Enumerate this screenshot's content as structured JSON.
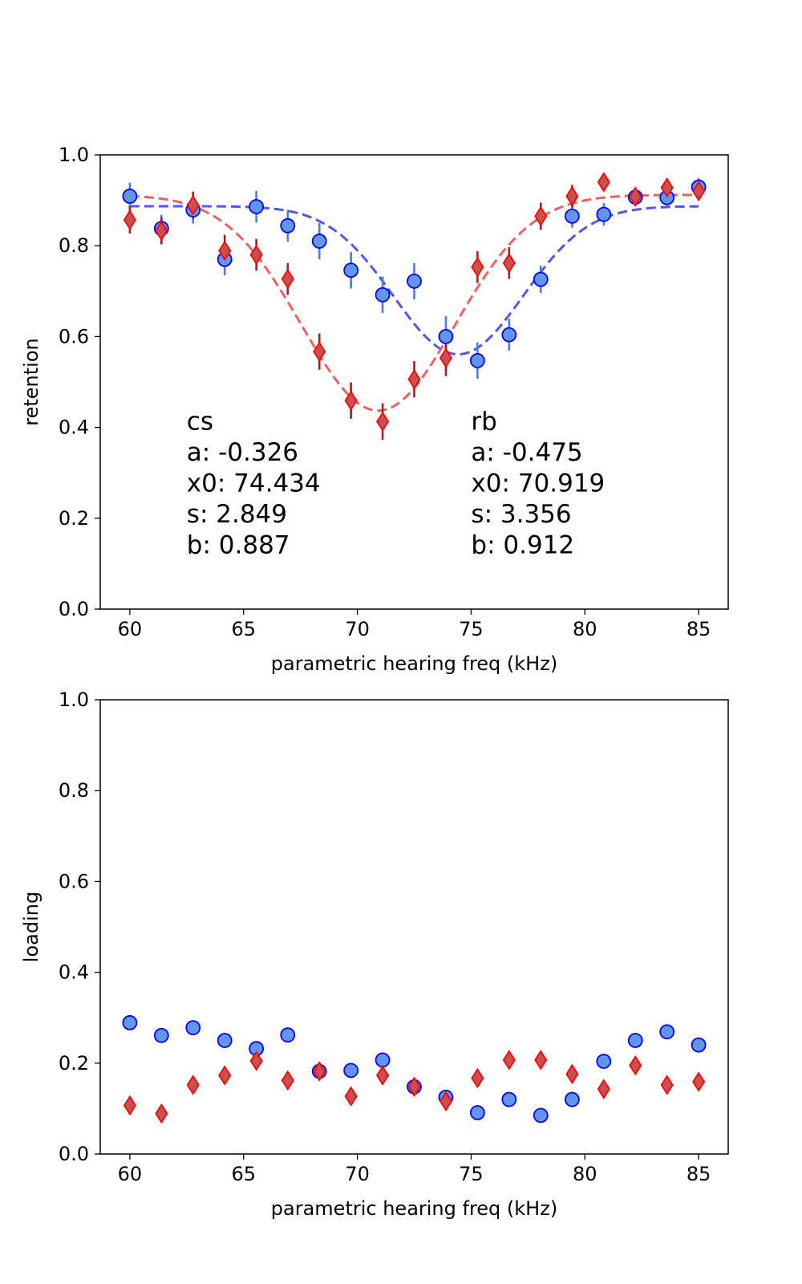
{
  "chart_data": [
    {
      "type": "scatter",
      "xlabel": "parametric hearing freq (kHz)",
      "ylabel": "retention",
      "xlim": [
        58.7,
        86.3
      ],
      "ylim": [
        0.0,
        1.0
      ],
      "xticks": [
        60,
        65,
        70,
        75,
        80,
        85
      ],
      "yticks": [
        0.0,
        0.2,
        0.4,
        0.6,
        0.8,
        1.0
      ],
      "grid": false,
      "series": [
        {
          "marker": "circle",
          "color": "#6495ED",
          "edge_color": "#0000FF",
          "errorbar_color": "#4A7FE0",
          "x": [
            60.0,
            61.39,
            62.78,
            64.17,
            65.56,
            66.94,
            68.33,
            69.72,
            71.11,
            72.5,
            73.89,
            75.28,
            76.67,
            78.06,
            79.44,
            80.83,
            82.22,
            83.61,
            85.0
          ],
          "y": [
            0.909,
            0.838,
            0.879,
            0.77,
            0.886,
            0.844,
            0.81,
            0.746,
            0.692,
            0.722,
            0.6,
            0.547,
            0.604,
            0.726,
            0.865,
            0.869,
            0.907,
            0.906,
            0.929
          ],
          "yerr": [
            0.03,
            0.03,
            0.03,
            0.035,
            0.035,
            0.035,
            0.04,
            0.04,
            0.04,
            0.04,
            0.045,
            0.04,
            0.035,
            0.03,
            0.025,
            0.025,
            0.02,
            0.02,
            0.02
          ],
          "fit": {
            "color": "#5555EE",
            "a": -0.326,
            "x0": 74.434,
            "s": 2.849,
            "b": 0.887
          }
        },
        {
          "marker": "diamond",
          "color": "#C85050",
          "edge_color": "#FF0000",
          "errorbar_color": "#A02020",
          "x": [
            60.0,
            61.39,
            62.78,
            64.17,
            65.56,
            66.94,
            68.33,
            69.72,
            71.11,
            72.5,
            73.89,
            75.28,
            76.67,
            78.06,
            79.44,
            80.83,
            82.22,
            83.61,
            85.0
          ],
          "y": [
            0.857,
            0.833,
            0.889,
            0.789,
            0.78,
            0.727,
            0.567,
            0.459,
            0.413,
            0.506,
            0.553,
            0.753,
            0.762,
            0.865,
            0.909,
            0.94,
            0.908,
            0.928,
            0.92
          ],
          "yerr": [
            0.03,
            0.03,
            0.03,
            0.035,
            0.035,
            0.035,
            0.04,
            0.04,
            0.04,
            0.04,
            0.04,
            0.035,
            0.035,
            0.03,
            0.025,
            0.02,
            0.02,
            0.02,
            0.02
          ],
          "fit": {
            "color": "#F06060",
            "a": -0.475,
            "x0": 70.919,
            "s": 3.356,
            "b": 0.912
          }
        }
      ],
      "annotations": [
        {
          "lines": [
            "cs",
            "a: -0.326",
            "x0: 74.434",
            "s: 2.849",
            "b: 0.887"
          ],
          "x": 62.5,
          "y": 0.395
        },
        {
          "lines": [
            "rb",
            "a: -0.475",
            "x0: 70.919",
            "s: 3.356",
            "b: 0.912"
          ],
          "x": 75.0,
          "y": 0.395
        }
      ]
    },
    {
      "type": "scatter",
      "xlabel": "parametric hearing freq (kHz)",
      "ylabel": "loading",
      "xlim": [
        58.7,
        86.3
      ],
      "ylim": [
        0.0,
        1.0
      ],
      "xticks": [
        60,
        65,
        70,
        75,
        80,
        85
      ],
      "yticks": [
        0.0,
        0.2,
        0.4,
        0.6,
        0.8,
        1.0
      ],
      "grid": false,
      "series": [
        {
          "marker": "circle",
          "color": "#6495ED",
          "edge_color": "#0000FF",
          "x": [
            60.0,
            61.39,
            62.78,
            64.17,
            65.56,
            66.94,
            68.33,
            69.72,
            71.11,
            72.5,
            73.89,
            75.28,
            76.67,
            78.06,
            79.44,
            80.83,
            82.22,
            83.61,
            85.0
          ],
          "y": [
            0.289,
            0.261,
            0.278,
            0.25,
            0.232,
            0.262,
            0.182,
            0.184,
            0.207,
            0.148,
            0.125,
            0.091,
            0.12,
            0.085,
            0.12,
            0.204,
            0.25,
            0.269,
            0.24
          ]
        },
        {
          "marker": "diamond",
          "color": "#C85050",
          "edge_color": "#FF0000",
          "x": [
            60.0,
            61.39,
            62.78,
            64.17,
            65.56,
            66.94,
            68.33,
            69.72,
            71.11,
            72.5,
            73.89,
            75.28,
            76.67,
            78.06,
            79.44,
            80.83,
            82.22,
            83.61,
            85.0
          ],
          "y": [
            0.107,
            0.089,
            0.152,
            0.173,
            0.205,
            0.162,
            0.182,
            0.127,
            0.173,
            0.148,
            0.116,
            0.167,
            0.207,
            0.207,
            0.176,
            0.143,
            0.195,
            0.152,
            0.159
          ]
        }
      ]
    }
  ]
}
